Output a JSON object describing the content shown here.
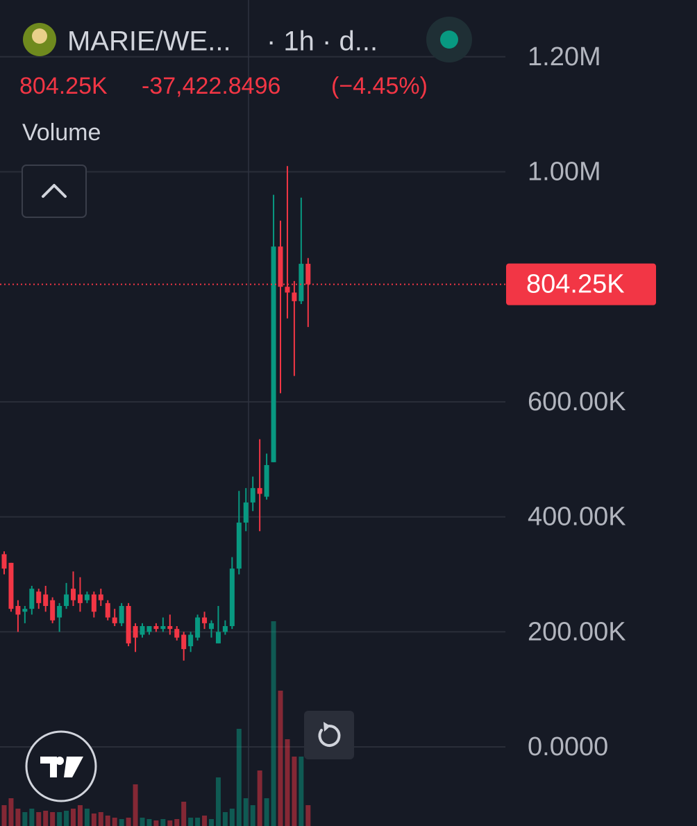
{
  "chart_data": {
    "type": "candlestick",
    "symbol": "MARIE/WE...",
    "interval": "· 1h · d...",
    "change": "-37,422.8496",
    "change_percent": "(−4.45%)",
    "indicator": "Volume",
    "last_price": {
      "value": 804250,
      "label": "804.25K"
    },
    "up_color": "#089981",
    "down_color": "#f23645",
    "grid": true,
    "ylim": [
      -137600,
      1298700
    ],
    "yticks": [
      {
        "value": 0,
        "label": "0.0000"
      },
      {
        "value": 200000,
        "label": "200.00K"
      },
      {
        "value": 400000,
        "label": "400.00K"
      },
      {
        "value": 600000,
        "label": "600.00K"
      },
      {
        "value": 1000000,
        "label": "1.00M"
      },
      {
        "value": 1200000,
        "label": "1.20M"
      }
    ],
    "open": [
      335000,
      320000,
      245000,
      235000,
      240000,
      270000,
      265000,
      255000,
      225000,
      245000,
      275000,
      265000,
      255000,
      265000,
      265000,
      250000,
      225000,
      215000,
      245000,
      210000,
      195000,
      200000,
      210000,
      205000,
      210000,
      205000,
      195000,
      175000,
      190000,
      225000,
      205000,
      180000,
      200000,
      210000,
      310000,
      390000,
      425000,
      450000,
      435000,
      495000,
      870000,
      800000,
      790000,
      775000,
      840000
    ],
    "high": [
      340000,
      320000,
      255000,
      245000,
      280000,
      275000,
      280000,
      260000,
      250000,
      285000,
      305000,
      295000,
      270000,
      270000,
      275000,
      255000,
      240000,
      250000,
      250000,
      215000,
      215000,
      210000,
      215000,
      225000,
      230000,
      210000,
      200000,
      200000,
      230000,
      235000,
      220000,
      245000,
      220000,
      330000,
      445000,
      450000,
      470000,
      535000,
      510000,
      960000,
      915000,
      1010000,
      810000,
      955000,
      850000
    ],
    "low": [
      300000,
      235000,
      200000,
      215000,
      230000,
      240000,
      235000,
      215000,
      200000,
      240000,
      245000,
      235000,
      250000,
      225000,
      245000,
      220000,
      210000,
      210000,
      175000,
      165000,
      190000,
      195000,
      200000,
      200000,
      195000,
      185000,
      150000,
      165000,
      185000,
      205000,
      190000,
      180000,
      195000,
      205000,
      300000,
      375000,
      410000,
      375000,
      430000,
      495000,
      615000,
      745000,
      645000,
      770000,
      730000
    ],
    "close": [
      310000,
      240000,
      230000,
      240000,
      275000,
      250000,
      245000,
      220000,
      245000,
      265000,
      255000,
      250000,
      265000,
      235000,
      255000,
      225000,
      215000,
      245000,
      180000,
      190000,
      210000,
      210000,
      205000,
      210000,
      205000,
      190000,
      170000,
      195000,
      225000,
      215000,
      215000,
      200000,
      210000,
      310000,
      390000,
      425000,
      450000,
      440000,
      490000,
      870000,
      800000,
      790000,
      775000,
      840000,
      804250
    ],
    "volume": [
      30,
      40,
      25,
      20,
      25,
      20,
      22,
      20,
      20,
      22,
      25,
      30,
      25,
      18,
      20,
      15,
      12,
      10,
      12,
      60,
      12,
      10,
      8,
      10,
      8,
      10,
      35,
      12,
      12,
      15,
      10,
      70,
      20,
      25,
      140,
      40,
      30,
      80,
      40,
      295,
      195,
      125,
      100,
      100,
      30
    ],
    "volume_ylim": [
      0,
      400
    ]
  }
}
